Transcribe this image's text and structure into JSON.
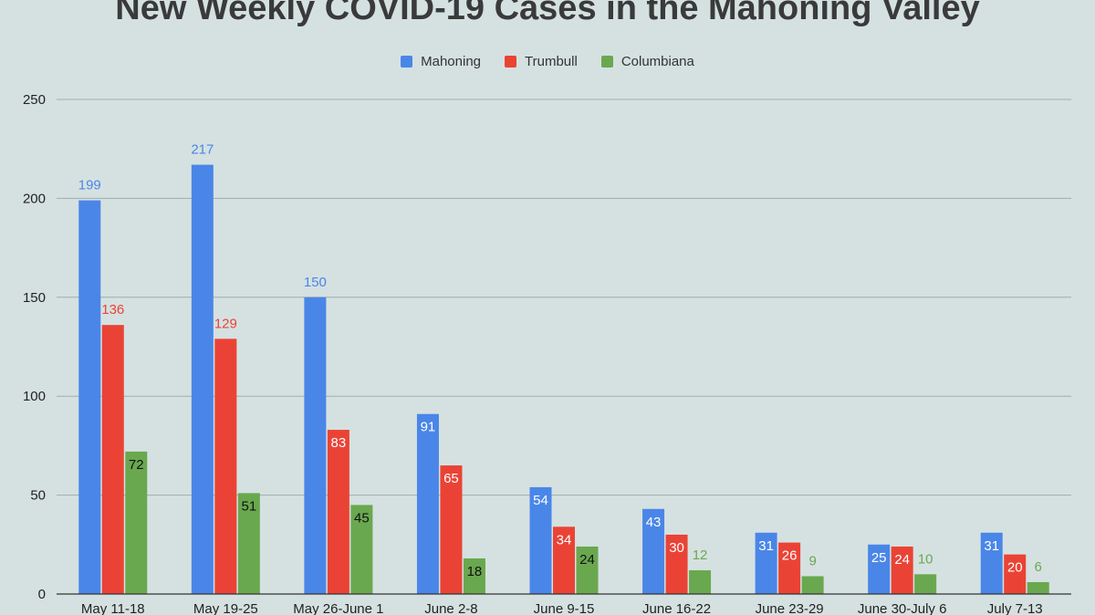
{
  "chart_data": {
    "type": "bar",
    "title": "New Weekly COVID-19 Cases in the Mahoning Valley",
    "xlabel": "",
    "ylabel": "",
    "categories": [
      "May 11-18",
      "May 19-25",
      "May 26-June 1",
      "June 2-8",
      "June 9-15",
      "June 16-22",
      "June 23-29",
      "June 30-July 6",
      "July 7-13"
    ],
    "series": [
      {
        "name": "Mahoning",
        "color": "#4a86e8",
        "values": [
          199,
          217,
          150,
          91,
          54,
          43,
          31,
          25,
          31
        ]
      },
      {
        "name": "Trumbull",
        "color": "#ea4335",
        "values": [
          136,
          129,
          83,
          65,
          34,
          30,
          26,
          24,
          20
        ]
      },
      {
        "name": "Columbiana",
        "color": "#6aa84f",
        "values": [
          72,
          51,
          45,
          18,
          24,
          12,
          9,
          10,
          6
        ]
      }
    ],
    "ylim": [
      0,
      250
    ],
    "yticks": [
      0,
      50,
      100,
      150,
      200,
      250
    ],
    "grid": true,
    "legend_position": "top-center"
  }
}
